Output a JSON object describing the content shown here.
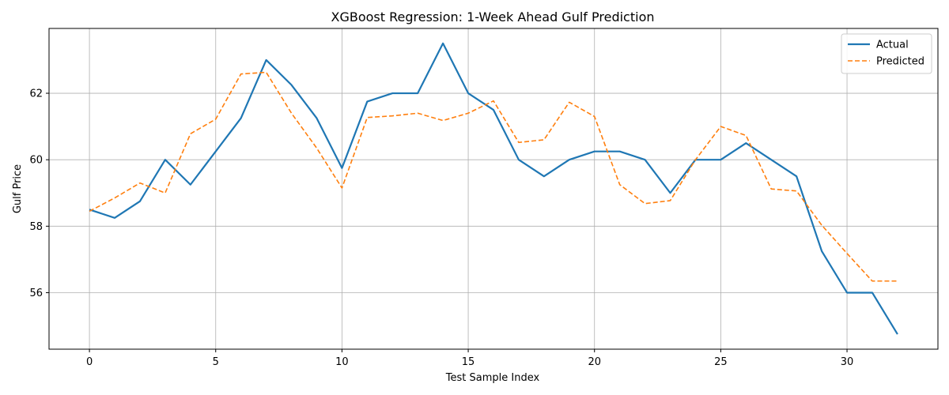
{
  "chart_data": {
    "type": "line",
    "title": "XGBoost Regression: 1-Week Ahead Gulf Prediction",
    "xlabel": "Test Sample Index",
    "ylabel": "Gulf Price",
    "xlim": [
      -1.6,
      33.6
    ],
    "ylim": [
      54.3,
      63.95
    ],
    "xticks": [
      0,
      5,
      10,
      15,
      20,
      25,
      30
    ],
    "yticks": [
      56,
      58,
      60,
      62
    ],
    "grid": true,
    "legend_position": "top-right",
    "x": [
      0,
      1,
      2,
      3,
      4,
      5,
      6,
      7,
      8,
      9,
      10,
      11,
      12,
      13,
      14,
      15,
      16,
      17,
      18,
      19,
      20,
      21,
      22,
      23,
      24,
      25,
      26,
      27,
      28,
      29,
      30,
      31,
      32
    ],
    "series": [
      {
        "name": "Actual",
        "color": "#1f77b4",
        "style": "solid",
        "values": [
          58.5,
          58.25,
          58.75,
          60.0,
          59.25,
          60.25,
          61.25,
          63.0,
          62.25,
          61.25,
          59.75,
          61.75,
          62.0,
          62.0,
          63.5,
          62.0,
          61.5,
          60.0,
          59.5,
          60.0,
          60.25,
          60.25,
          60.0,
          59.0,
          60.0,
          60.0,
          60.5,
          60.0,
          59.5,
          57.25,
          56.0,
          56.0,
          54.75
        ]
      },
      {
        "name": "Predicted",
        "color": "#ff7f0e",
        "style": "dashed",
        "values": [
          58.45,
          58.85,
          59.3,
          59.0,
          60.78,
          61.22,
          62.58,
          62.63,
          61.4,
          60.35,
          59.15,
          61.27,
          61.32,
          61.4,
          61.18,
          61.4,
          61.77,
          60.52,
          60.6,
          61.73,
          61.3,
          59.25,
          58.68,
          58.77,
          60.0,
          61.0,
          60.73,
          59.12,
          59.06,
          58.03,
          57.18,
          56.35,
          56.35
        ]
      }
    ]
  }
}
